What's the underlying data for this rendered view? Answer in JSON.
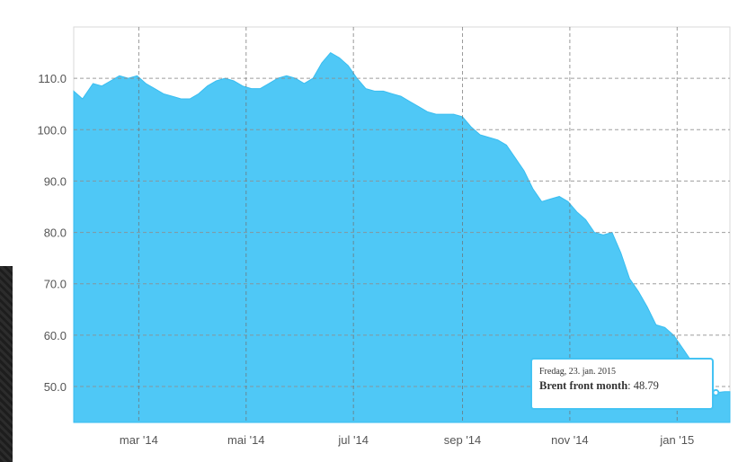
{
  "chart_data": {
    "type": "area",
    "title": "",
    "xlabel": "",
    "ylabel": "",
    "ylim": [
      43,
      120
    ],
    "yticks": [
      50,
      60,
      70,
      80,
      90,
      100,
      110
    ],
    "ytick_labels": [
      "50.0",
      "60.0",
      "70.0",
      "80.0",
      "90.0",
      "100.0",
      "110.0"
    ],
    "x_range": [
      "2014-01-23",
      "2015-01-31"
    ],
    "xticks": [
      "2014-03-01",
      "2014-05-01",
      "2014-07-01",
      "2014-09-01",
      "2014-11-01",
      "2015-01-01"
    ],
    "xtick_labels": [
      "mar '14",
      "mai '14",
      "jul '14",
      "sep '14",
      "nov '14",
      "jan '15"
    ],
    "grid": true,
    "fill_color": "#4fc8f6",
    "series": [
      {
        "name": "Brent front month",
        "x": [
          "2014-01-23",
          "2014-01-28",
          "2014-02-03",
          "2014-02-08",
          "2014-02-13",
          "2014-02-18",
          "2014-02-23",
          "2014-02-28",
          "2014-03-05",
          "2014-03-10",
          "2014-03-15",
          "2014-03-20",
          "2014-03-25",
          "2014-03-30",
          "2014-04-04",
          "2014-04-09",
          "2014-04-14",
          "2014-04-19",
          "2014-04-24",
          "2014-04-29",
          "2014-05-04",
          "2014-05-09",
          "2014-05-14",
          "2014-05-19",
          "2014-05-24",
          "2014-05-29",
          "2014-06-03",
          "2014-06-08",
          "2014-06-13",
          "2014-06-18",
          "2014-06-23",
          "2014-06-28",
          "2014-07-03",
          "2014-07-08",
          "2014-07-13",
          "2014-07-18",
          "2014-07-23",
          "2014-07-28",
          "2014-08-02",
          "2014-08-07",
          "2014-08-12",
          "2014-08-17",
          "2014-08-22",
          "2014-08-27",
          "2014-09-01",
          "2014-09-06",
          "2014-09-11",
          "2014-09-16",
          "2014-09-21",
          "2014-09-26",
          "2014-10-01",
          "2014-10-06",
          "2014-10-11",
          "2014-10-16",
          "2014-10-21",
          "2014-10-26",
          "2014-10-31",
          "2014-11-05",
          "2014-11-10",
          "2014-11-15",
          "2014-11-20",
          "2014-11-25",
          "2014-11-30",
          "2014-12-05",
          "2014-12-10",
          "2014-12-15",
          "2014-12-20",
          "2014-12-25",
          "2014-12-30",
          "2015-01-04",
          "2015-01-09",
          "2015-01-14",
          "2015-01-19",
          "2015-01-23",
          "2015-01-28",
          "2015-01-31"
        ],
        "values": [
          107.5,
          106.0,
          109.0,
          108.5,
          109.5,
          110.5,
          110.0,
          110.5,
          109.0,
          108.0,
          107.0,
          106.5,
          106.0,
          106.0,
          107.0,
          108.5,
          109.5,
          110.0,
          109.5,
          108.5,
          108.0,
          108.0,
          109.0,
          110.0,
          110.5,
          110.0,
          109.0,
          110.0,
          113.0,
          115.0,
          114.0,
          112.5,
          110.0,
          108.0,
          107.5,
          107.5,
          107.0,
          106.5,
          105.5,
          104.5,
          103.5,
          103.0,
          103.0,
          103.0,
          102.5,
          100.5,
          99.0,
          98.5,
          98.0,
          97.0,
          94.5,
          92.0,
          88.5,
          86.0,
          86.5,
          87.0,
          86.0,
          84.0,
          82.5,
          80.0,
          79.5,
          80.0,
          76.0,
          71.0,
          68.5,
          65.5,
          62.0,
          61.5,
          60.0,
          57.5,
          55.0,
          51.0,
          50.0,
          48.79,
          49.0,
          49.0
        ]
      }
    ]
  },
  "tooltip": {
    "date": "Fredag, 23. jan. 2015",
    "series_name": "Brent front month",
    "value": "48.79",
    "border_color": "#44c3f3"
  }
}
